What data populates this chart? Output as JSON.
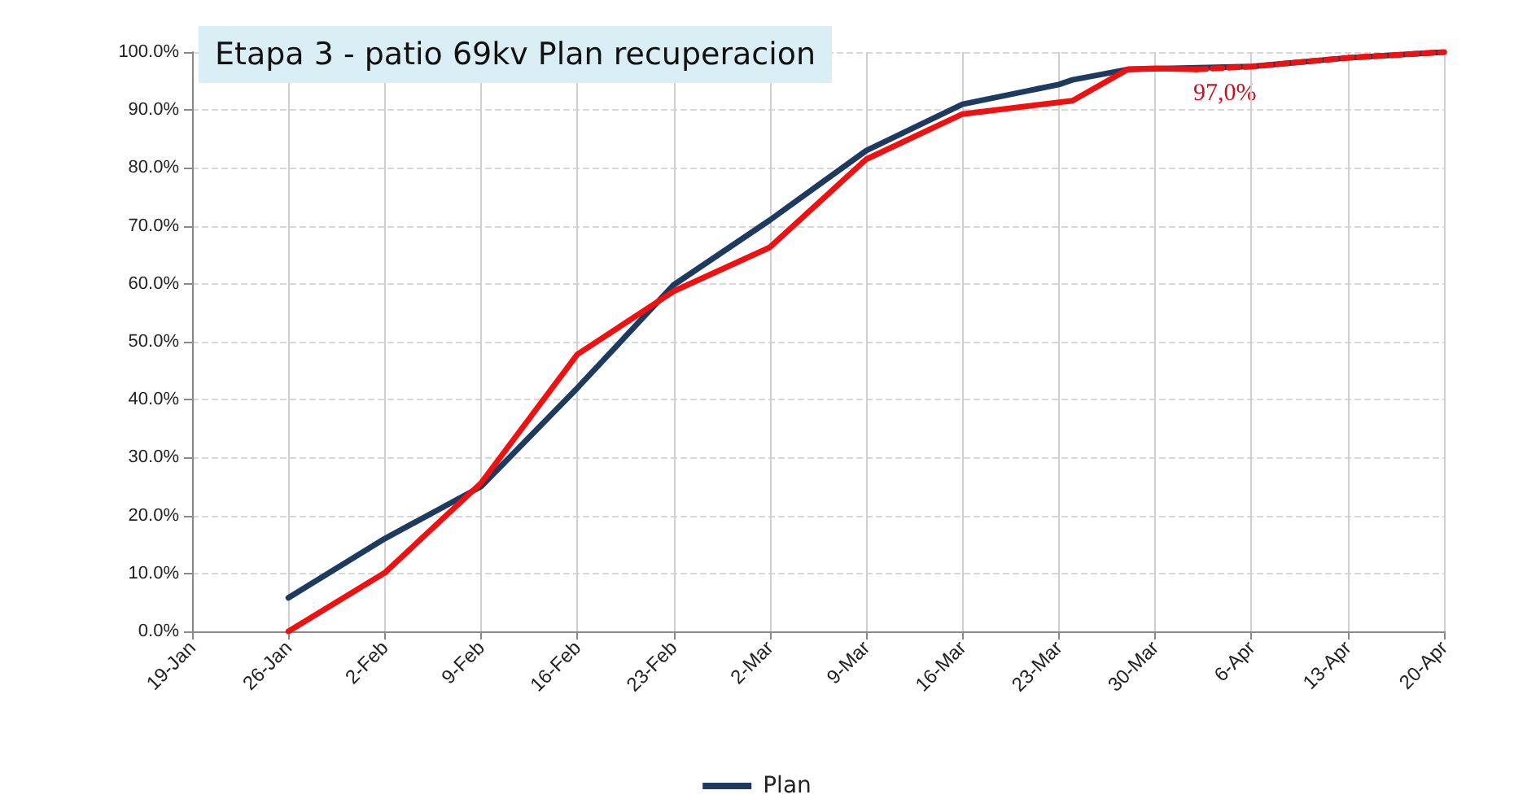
{
  "chart_data": {
    "type": "line",
    "title": "Etapa 3 - patio 69kv Plan recuperacion",
    "annotations": [
      "97,0%"
    ],
    "series": [
      {
        "name": "Plan",
        "color": "#1f3a5f",
        "x": [
          "--01-26",
          "--02-02",
          "--02-09",
          "--02-16",
          "--02-23",
          "--03-02",
          "--03-09",
          "--03-16",
          "--03-23",
          "--03-24",
          "--03-28",
          "--04-06",
          "--04-13",
          "--04-20"
        ],
        "values": [
          5.8,
          16,
          25,
          42,
          59.8,
          71,
          83,
          91,
          94.4,
          95.2,
          97,
          97.5,
          99,
          100
        ]
      },
      {
        "color": "#ee1111",
        "x": [
          "--01-26",
          "--02-02",
          "--02-09",
          "--02-16",
          "--02-23",
          "--03-02",
          "--03-09",
          "--03-16",
          "--03-24",
          "--03-28",
          "--03-30",
          "--04-02"
        ],
        "values": [
          0,
          10.1,
          25.6,
          47.8,
          58.7,
          66.3,
          81.5,
          89.3,
          91.6,
          97,
          97.2,
          97
        ]
      },
      {
        "color": "#ee1111",
        "line_style": "dashed",
        "x": [
          "--04-02",
          "--04-06",
          "--04-13",
          "--04-20"
        ],
        "values": [
          97,
          97.5,
          99,
          100
        ]
      }
    ],
    "xlim": [
      "--01-19",
      "--04-20"
    ],
    "xticks": [
      {
        "value": "--01-19",
        "label": "19-Jan"
      },
      {
        "value": "--01-26",
        "label": "26-Jan"
      },
      {
        "value": "--02-02",
        "label": "2-Feb"
      },
      {
        "value": "--02-09",
        "label": "9-Feb"
      },
      {
        "value": "--02-16",
        "label": "16-Feb"
      },
      {
        "value": "--02-23",
        "label": "23-Feb"
      },
      {
        "value": "--03-02",
        "label": "2-Mar"
      },
      {
        "value": "--03-09",
        "label": "9-Mar"
      },
      {
        "value": "--03-16",
        "label": "16-Mar"
      },
      {
        "value": "--03-23",
        "label": "23-Mar"
      },
      {
        "value": "--03-30",
        "label": "30-Mar"
      },
      {
        "value": "--04-06",
        "label": "6-Apr"
      },
      {
        "value": "--04-13",
        "label": "13-Apr"
      },
      {
        "value": "--04-20",
        "label": "20-Apr"
      }
    ],
    "ylim": [
      0,
      100
    ],
    "yticks": [
      {
        "value": 0,
        "label": "0.0%"
      },
      {
        "value": 10,
        "label": "10.0%"
      },
      {
        "value": 20,
        "label": "20.0%"
      },
      {
        "value": 30,
        "label": "30.0%"
      },
      {
        "value": 40,
        "label": "40.0%"
      },
      {
        "value": 50,
        "label": "50.0%"
      },
      {
        "value": 60,
        "label": "60.0%"
      },
      {
        "value": 70,
        "label": "70.0%"
      },
      {
        "value": 80,
        "label": "80.0%"
      },
      {
        "value": 90,
        "label": "90.0%"
      },
      {
        "value": 100,
        "label": "100.0%"
      }
    ],
    "grid": true,
    "legend": "bottom",
    "marker": "none",
    "line_style": "solid"
  }
}
